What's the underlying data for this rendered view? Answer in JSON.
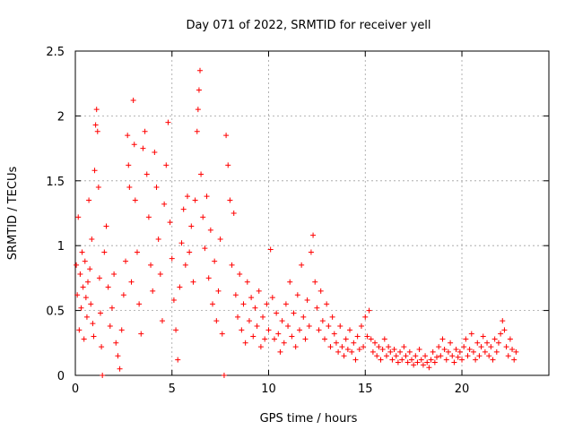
{
  "chart_data": {
    "type": "scatter",
    "title": "Day 071 of 2022, SRMTID for receiver yell",
    "xlabel": "GPS time / hours",
    "ylabel": "SRMTID / TECUs",
    "xlim": [
      0,
      24.5
    ],
    "ylim": [
      0,
      2.5
    ],
    "xticks": [
      0,
      5,
      10,
      15,
      20
    ],
    "xtick_labels": [
      "0",
      "5",
      "10",
      "15",
      "20"
    ],
    "yticks": [
      0,
      0.5,
      1,
      1.5,
      2,
      2.5
    ],
    "ytick_labels": [
      "0",
      "0.5",
      "1",
      "1.5",
      "2",
      "2.5"
    ],
    "grid": true,
    "marker": "+",
    "color": "#ff0000",
    "series": [
      {
        "name": "SRMTID",
        "points": [
          [
            0.05,
            0.85
          ],
          [
            0.1,
            0.62
          ],
          [
            0.15,
            1.22
          ],
          [
            0.2,
            0.35
          ],
          [
            0.25,
            0.78
          ],
          [
            0.3,
            0.52
          ],
          [
            0.35,
            0.95
          ],
          [
            0.4,
            0.68
          ],
          [
            0.45,
            0.28
          ],
          [
            0.5,
            0.88
          ],
          [
            0.55,
            0.6
          ],
          [
            0.6,
            0.45
          ],
          [
            0.65,
            0.72
          ],
          [
            0.7,
            1.35
          ],
          [
            0.75,
            0.82
          ],
          [
            0.8,
            0.55
          ],
          [
            0.85,
            1.05
          ],
          [
            0.9,
            0.4
          ],
          [
            0.95,
            0.3
          ],
          [
            1.0,
            1.58
          ],
          [
            1.05,
            1.93
          ],
          [
            1.1,
            2.05
          ],
          [
            1.15,
            1.88
          ],
          [
            1.2,
            1.45
          ],
          [
            1.25,
            0.75
          ],
          [
            1.3,
            0.48
          ],
          [
            1.35,
            0.22
          ],
          [
            1.4,
            0.0
          ],
          [
            1.5,
            0.95
          ],
          [
            1.6,
            1.15
          ],
          [
            1.7,
            0.68
          ],
          [
            1.8,
            0.38
          ],
          [
            1.9,
            0.52
          ],
          [
            2.0,
            0.78
          ],
          [
            2.1,
            0.25
          ],
          [
            2.2,
            0.15
          ],
          [
            2.3,
            0.05
          ],
          [
            2.4,
            0.35
          ],
          [
            2.5,
            0.62
          ],
          [
            2.6,
            0.88
          ],
          [
            2.7,
            1.85
          ],
          [
            2.75,
            1.62
          ],
          [
            2.8,
            1.45
          ],
          [
            2.9,
            0.72
          ],
          [
            3.0,
            2.12
          ],
          [
            3.05,
            1.78
          ],
          [
            3.1,
            1.35
          ],
          [
            3.2,
            0.95
          ],
          [
            3.3,
            0.55
          ],
          [
            3.4,
            0.32
          ],
          [
            3.5,
            1.75
          ],
          [
            3.6,
            1.88
          ],
          [
            3.7,
            1.55
          ],
          [
            3.8,
            1.22
          ],
          [
            3.9,
            0.85
          ],
          [
            4.0,
            0.65
          ],
          [
            4.1,
            1.72
          ],
          [
            4.2,
            1.45
          ],
          [
            4.3,
            1.05
          ],
          [
            4.4,
            0.78
          ],
          [
            4.5,
            0.42
          ],
          [
            4.6,
            1.32
          ],
          [
            4.7,
            1.62
          ],
          [
            4.8,
            1.95
          ],
          [
            4.9,
            1.18
          ],
          [
            5.0,
            0.9
          ],
          [
            5.1,
            0.58
          ],
          [
            5.2,
            0.35
          ],
          [
            5.3,
            0.12
          ],
          [
            5.4,
            0.68
          ],
          [
            5.5,
            1.02
          ],
          [
            5.6,
            1.28
          ],
          [
            5.7,
            0.85
          ],
          [
            5.8,
            1.38
          ],
          [
            5.9,
            0.95
          ],
          [
            6.0,
            1.15
          ],
          [
            6.1,
            0.72
          ],
          [
            6.2,
            1.35
          ],
          [
            6.3,
            1.88
          ],
          [
            6.35,
            2.05
          ],
          [
            6.4,
            2.2
          ],
          [
            6.45,
            2.35
          ],
          [
            6.5,
            1.55
          ],
          [
            6.6,
            1.22
          ],
          [
            6.7,
            0.98
          ],
          [
            6.8,
            1.38
          ],
          [
            6.9,
            0.75
          ],
          [
            7.0,
            1.12
          ],
          [
            7.1,
            0.55
          ],
          [
            7.2,
            0.88
          ],
          [
            7.3,
            0.42
          ],
          [
            7.4,
            0.65
          ],
          [
            7.5,
            1.05
          ],
          [
            7.6,
            0.32
          ],
          [
            7.7,
            0.0
          ],
          [
            7.8,
            1.85
          ],
          [
            7.9,
            1.62
          ],
          [
            8.0,
            1.35
          ],
          [
            8.1,
            0.85
          ],
          [
            8.2,
            1.25
          ],
          [
            8.3,
            0.62
          ],
          [
            8.4,
            0.45
          ],
          [
            8.5,
            0.78
          ],
          [
            8.6,
            0.35
          ],
          [
            8.7,
            0.55
          ],
          [
            8.8,
            0.25
          ],
          [
            8.9,
            0.72
          ],
          [
            9.0,
            0.42
          ],
          [
            9.1,
            0.6
          ],
          [
            9.2,
            0.3
          ],
          [
            9.3,
            0.52
          ],
          [
            9.4,
            0.38
          ],
          [
            9.5,
            0.65
          ],
          [
            9.6,
            0.22
          ],
          [
            9.7,
            0.45
          ],
          [
            9.8,
            0.28
          ],
          [
            9.9,
            0.55
          ],
          [
            10.0,
            0.35
          ],
          [
            10.1,
            0.97
          ],
          [
            10.2,
            0.6
          ],
          [
            10.3,
            0.28
          ],
          [
            10.4,
            0.48
          ],
          [
            10.5,
            0.32
          ],
          [
            10.6,
            0.18
          ],
          [
            10.7,
            0.42
          ],
          [
            10.8,
            0.25
          ],
          [
            10.9,
            0.55
          ],
          [
            11.0,
            0.38
          ],
          [
            11.1,
            0.72
          ],
          [
            11.2,
            0.3
          ],
          [
            11.3,
            0.48
          ],
          [
            11.4,
            0.22
          ],
          [
            11.5,
            0.62
          ],
          [
            11.6,
            0.35
          ],
          [
            11.7,
            0.85
          ],
          [
            11.8,
            0.45
          ],
          [
            11.9,
            0.28
          ],
          [
            12.0,
            0.58
          ],
          [
            12.1,
            0.38
          ],
          [
            12.2,
            0.95
          ],
          [
            12.3,
            1.08
          ],
          [
            12.4,
            0.72
          ],
          [
            12.5,
            0.52
          ],
          [
            12.6,
            0.35
          ],
          [
            12.7,
            0.65
          ],
          [
            12.8,
            0.42
          ],
          [
            12.9,
            0.28
          ],
          [
            13.0,
            0.55
          ],
          [
            13.1,
            0.38
          ],
          [
            13.2,
            0.22
          ],
          [
            13.3,
            0.45
          ],
          [
            13.4,
            0.32
          ],
          [
            13.5,
            0.25
          ],
          [
            13.6,
            0.18
          ],
          [
            13.7,
            0.38
          ],
          [
            13.8,
            0.22
          ],
          [
            13.9,
            0.15
          ],
          [
            14.0,
            0.28
          ],
          [
            14.1,
            0.2
          ],
          [
            14.2,
            0.35
          ],
          [
            14.3,
            0.18
          ],
          [
            14.4,
            0.25
          ],
          [
            14.5,
            0.12
          ],
          [
            14.6,
            0.3
          ],
          [
            14.7,
            0.2
          ],
          [
            14.8,
            0.38
          ],
          [
            14.9,
            0.22
          ],
          [
            15.0,
            0.45
          ],
          [
            15.1,
            0.3
          ],
          [
            15.2,
            0.5
          ],
          [
            15.3,
            0.28
          ],
          [
            15.4,
            0.18
          ],
          [
            15.5,
            0.25
          ],
          [
            15.6,
            0.15
          ],
          [
            15.7,
            0.22
          ],
          [
            15.8,
            0.12
          ],
          [
            15.9,
            0.2
          ],
          [
            16.0,
            0.28
          ],
          [
            16.1,
            0.15
          ],
          [
            16.2,
            0.22
          ],
          [
            16.3,
            0.18
          ],
          [
            16.4,
            0.12
          ],
          [
            16.5,
            0.2
          ],
          [
            16.6,
            0.15
          ],
          [
            16.7,
            0.1
          ],
          [
            16.8,
            0.18
          ],
          [
            16.9,
            0.12
          ],
          [
            17.0,
            0.22
          ],
          [
            17.1,
            0.15
          ],
          [
            17.2,
            0.1
          ],
          [
            17.3,
            0.18
          ],
          [
            17.4,
            0.12
          ],
          [
            17.5,
            0.08
          ],
          [
            17.6,
            0.15
          ],
          [
            17.7,
            0.1
          ],
          [
            17.8,
            0.2
          ],
          [
            17.9,
            0.12
          ],
          [
            18.0,
            0.08
          ],
          [
            18.1,
            0.15
          ],
          [
            18.2,
            0.1
          ],
          [
            18.3,
            0.06
          ],
          [
            18.4,
            0.12
          ],
          [
            18.5,
            0.18
          ],
          [
            18.6,
            0.1
          ],
          [
            18.7,
            0.14
          ],
          [
            18.8,
            0.22
          ],
          [
            18.9,
            0.15
          ],
          [
            19.0,
            0.28
          ],
          [
            19.1,
            0.2
          ],
          [
            19.2,
            0.12
          ],
          [
            19.3,
            0.18
          ],
          [
            19.4,
            0.25
          ],
          [
            19.5,
            0.15
          ],
          [
            19.6,
            0.1
          ],
          [
            19.7,
            0.2
          ],
          [
            19.8,
            0.14
          ],
          [
            19.9,
            0.18
          ],
          [
            20.0,
            0.12
          ],
          [
            20.1,
            0.22
          ],
          [
            20.2,
            0.28
          ],
          [
            20.3,
            0.15
          ],
          [
            20.4,
            0.2
          ],
          [
            20.5,
            0.32
          ],
          [
            20.6,
            0.18
          ],
          [
            20.7,
            0.12
          ],
          [
            20.8,
            0.25
          ],
          [
            20.9,
            0.15
          ],
          [
            21.0,
            0.22
          ],
          [
            21.1,
            0.3
          ],
          [
            21.2,
            0.18
          ],
          [
            21.3,
            0.25
          ],
          [
            21.4,
            0.15
          ],
          [
            21.5,
            0.22
          ],
          [
            21.6,
            0.12
          ],
          [
            21.7,
            0.28
          ],
          [
            21.8,
            0.18
          ],
          [
            21.9,
            0.25
          ],
          [
            22.0,
            0.32
          ],
          [
            22.1,
            0.42
          ],
          [
            22.2,
            0.35
          ],
          [
            22.3,
            0.22
          ],
          [
            22.4,
            0.15
          ],
          [
            22.5,
            0.28
          ],
          [
            22.6,
            0.2
          ],
          [
            22.7,
            0.12
          ],
          [
            22.8,
            0.18
          ]
        ]
      }
    ]
  }
}
